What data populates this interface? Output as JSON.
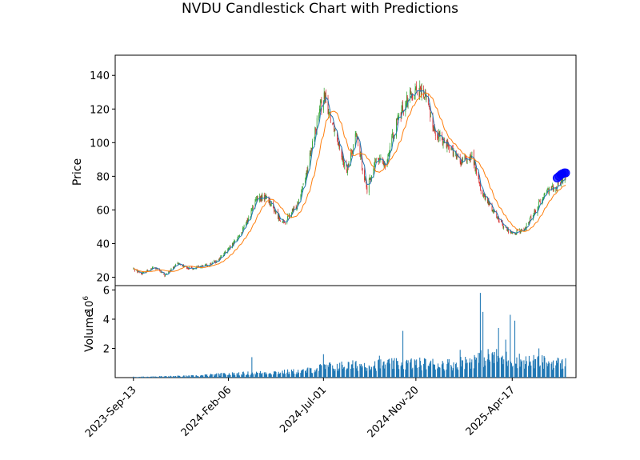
{
  "chart_data": [
    {
      "type": "candlestick",
      "title": "NVDU Candlestick Chart with Predictions",
      "xlabel": "",
      "ylabel": "Price",
      "ylim": [
        15,
        152
      ],
      "yticks": [
        20,
        40,
        60,
        80,
        100,
        120,
        140
      ],
      "x_tick_labels": [
        "2023-Sep-13",
        "2024-Feb-06",
        "2024-Jul-01",
        "2024-Nov-20",
        "2025-Apr-17"
      ],
      "x_tick_dates": [
        "2023-09-13",
        "2024-02-06",
        "2024-07-01",
        "2024-11-20",
        "2025-04-17"
      ],
      "xlim_dates": [
        "2023-08-16",
        "2025-07-24"
      ],
      "up_color": "#2ca02c",
      "down_color": "#d62728",
      "ma_short_color": "#1f77b4",
      "ma_long_color": "#ff7f0e",
      "prediction_color": "#0000ff",
      "close_trend": {
        "dates": [
          "2023-09-13",
          "2023-09-25",
          "2023-10-15",
          "2023-10-31",
          "2023-11-20",
          "2023-12-10",
          "2024-01-05",
          "2024-01-20",
          "2024-02-10",
          "2024-02-28",
          "2024-03-08",
          "2024-03-20",
          "2024-04-05",
          "2024-04-19",
          "2024-05-01",
          "2024-05-20",
          "2024-06-05",
          "2024-06-20",
          "2024-07-01",
          "2024-07-10",
          "2024-07-25",
          "2024-08-05",
          "2024-08-20",
          "2024-09-06",
          "2024-09-20",
          "2024-10-05",
          "2024-10-20",
          "2024-11-05",
          "2024-11-20",
          "2024-12-05",
          "2024-12-20",
          "2025-01-07",
          "2025-01-27",
          "2025-02-15",
          "2025-03-01",
          "2025-03-15",
          "2025-04-04",
          "2025-04-17",
          "2025-05-05",
          "2025-05-20",
          "2025-06-10",
          "2025-06-30",
          "2025-07-08"
        ],
        "values": [
          25,
          22,
          26,
          21,
          28,
          25,
          27,
          30,
          38,
          48,
          55,
          66,
          68,
          58,
          52,
          62,
          82,
          110,
          128,
          118,
          100,
          82,
          105,
          72,
          90,
          88,
          110,
          125,
          132,
          128,
          105,
          100,
          88,
          92,
          70,
          62,
          50,
          46,
          48,
          58,
          72,
          76,
          80
        ]
      },
      "predictions": {
        "dates": [
          "2025-06-25",
          "2025-06-28",
          "2025-07-01",
          "2025-07-03",
          "2025-07-06",
          "2025-07-08"
        ],
        "values": [
          79,
          80,
          81,
          81.5,
          82,
          82
        ]
      }
    },
    {
      "type": "bar",
      "xlabel": "",
      "ylabel": "Volume",
      "ylabel_multiplier": "10^6",
      "ylim": [
        0,
        6.3
      ],
      "yticks": [
        2,
        4,
        6
      ],
      "color": "#1f77b4",
      "volume_trend": {
        "dates": [
          "2023-09-13",
          "2023-12-15",
          "2024-02-01",
          "2024-04-01",
          "2024-06-01",
          "2024-07-01",
          "2024-09-01",
          "2024-11-20",
          "2025-01-15",
          "2025-03-15",
          "2025-05-01",
          "2025-07-08"
        ],
        "values": [
          0.05,
          0.12,
          0.25,
          0.35,
          0.45,
          0.75,
          0.9,
          1.0,
          0.95,
          1.5,
          1.2,
          1.0
        ]
      },
      "spikes": [
        {
          "date": "2024-03-13",
          "value": 1.4
        },
        {
          "date": "2024-07-01",
          "value": 1.6
        },
        {
          "date": "2024-09-25",
          "value": 1.5
        },
        {
          "date": "2024-10-31",
          "value": 3.2
        },
        {
          "date": "2025-01-27",
          "value": 1.9
        },
        {
          "date": "2025-02-27",
          "value": 5.8
        },
        {
          "date": "2025-03-03",
          "value": 4.5
        },
        {
          "date": "2025-03-27",
          "value": 3.4
        },
        {
          "date": "2025-04-07",
          "value": 2.6
        },
        {
          "date": "2025-04-14",
          "value": 4.3
        },
        {
          "date": "2025-04-21",
          "value": 3.9
        },
        {
          "date": "2025-05-28",
          "value": 2.0
        }
      ]
    }
  ]
}
